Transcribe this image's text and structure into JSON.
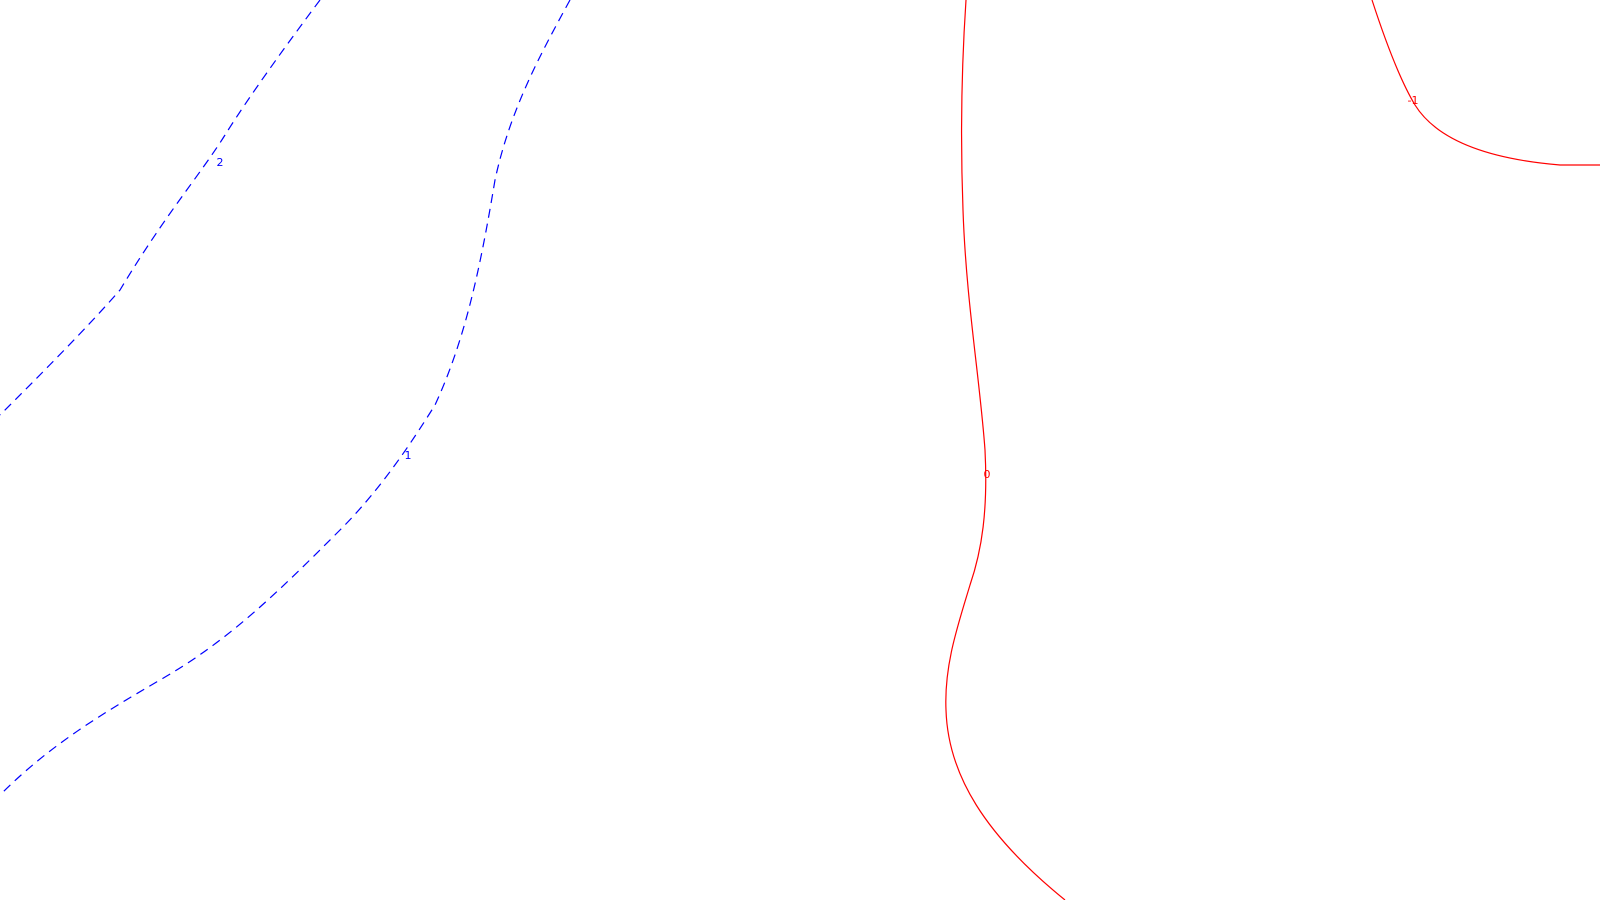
{
  "colors": {
    "background": "#ffffff",
    "positive": "#0000ff",
    "negative": "#ff0000"
  },
  "contours": [
    {
      "level": 2,
      "label": "2",
      "style": "dashed",
      "color": "#0000ff"
    },
    {
      "level": 1,
      "label": "1",
      "style": "dashed",
      "color": "#0000ff"
    },
    {
      "level": 0,
      "label": "0",
      "style": "solid",
      "color": "#ff0000"
    },
    {
      "level": -1,
      "label": "-1",
      "style": "solid",
      "color": "#ff0000"
    }
  ]
}
